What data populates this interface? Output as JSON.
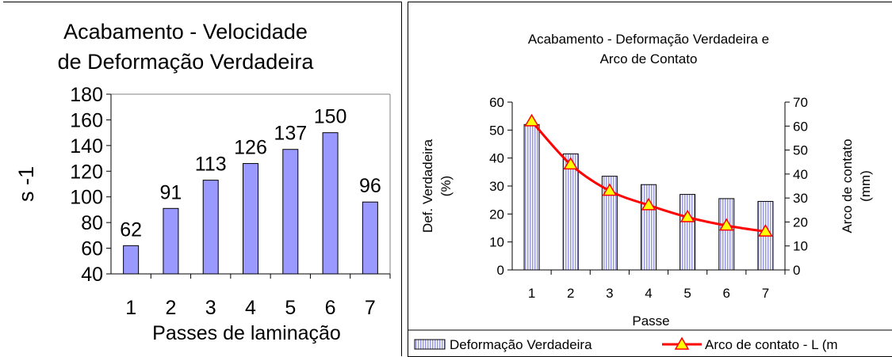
{
  "chart_data": [
    {
      "type": "bar",
      "title": "Acabamento - Velocidade de Deformação Verdadeira",
      "title_lines": [
        "Acabamento - Velocidade",
        "de Deformação Verdadeira"
      ],
      "xlabel": "Passes de laminação",
      "ylabel": "s -1",
      "categories": [
        "1",
        "2",
        "3",
        "4",
        "5",
        "6",
        "7"
      ],
      "values": [
        62,
        91,
        113,
        126,
        137,
        150,
        96
      ],
      "ylim": [
        40,
        180
      ],
      "yticks": [
        "40",
        "60",
        "80",
        "100",
        "120",
        "140",
        "160",
        "180"
      ],
      "data_labels": [
        "62",
        "91",
        "113",
        "126",
        "137",
        "150",
        "96"
      ],
      "bar_color": "#9999ff",
      "grid": false
    },
    {
      "type": "bar+line",
      "title": "Acabamento - Deformação Verdadeira e Arco de Contato",
      "title_lines": [
        "Acabamento - Deformação Verdadeira e",
        "Arco de Contato"
      ],
      "xlabel": "Passe",
      "ylabel_left_lines": [
        "Def. Verdadeira",
        "(%)"
      ],
      "ylabel_right_lines": [
        "Arco de contato",
        "(mm)"
      ],
      "categories": [
        "1",
        "2",
        "3",
        "4",
        "5",
        "6",
        "7"
      ],
      "ylim_left": [
        0,
        60
      ],
      "yticks_left": [
        "0",
        "10",
        "20",
        "30",
        "40",
        "50",
        "60"
      ],
      "ylim_right": [
        0,
        70
      ],
      "yticks_right": [
        "0",
        "10",
        "20",
        "30",
        "40",
        "50",
        "60",
        "70"
      ],
      "series": [
        {
          "name": "Deformação Verdadeira",
          "type": "bar",
          "axis": "left",
          "values": [
            52,
            41.5,
            33.5,
            30.5,
            27,
            25.5,
            24.5
          ],
          "color": "#ccccff"
        },
        {
          "name": "Arco de contato - L (m",
          "type": "line",
          "axis": "right",
          "values": [
            62,
            44,
            33,
            27,
            22,
            18.5,
            16
          ],
          "color": "#ff0000",
          "marker_color": "#ffff00"
        }
      ],
      "legend_position": "bottom",
      "grid": false
    }
  ]
}
